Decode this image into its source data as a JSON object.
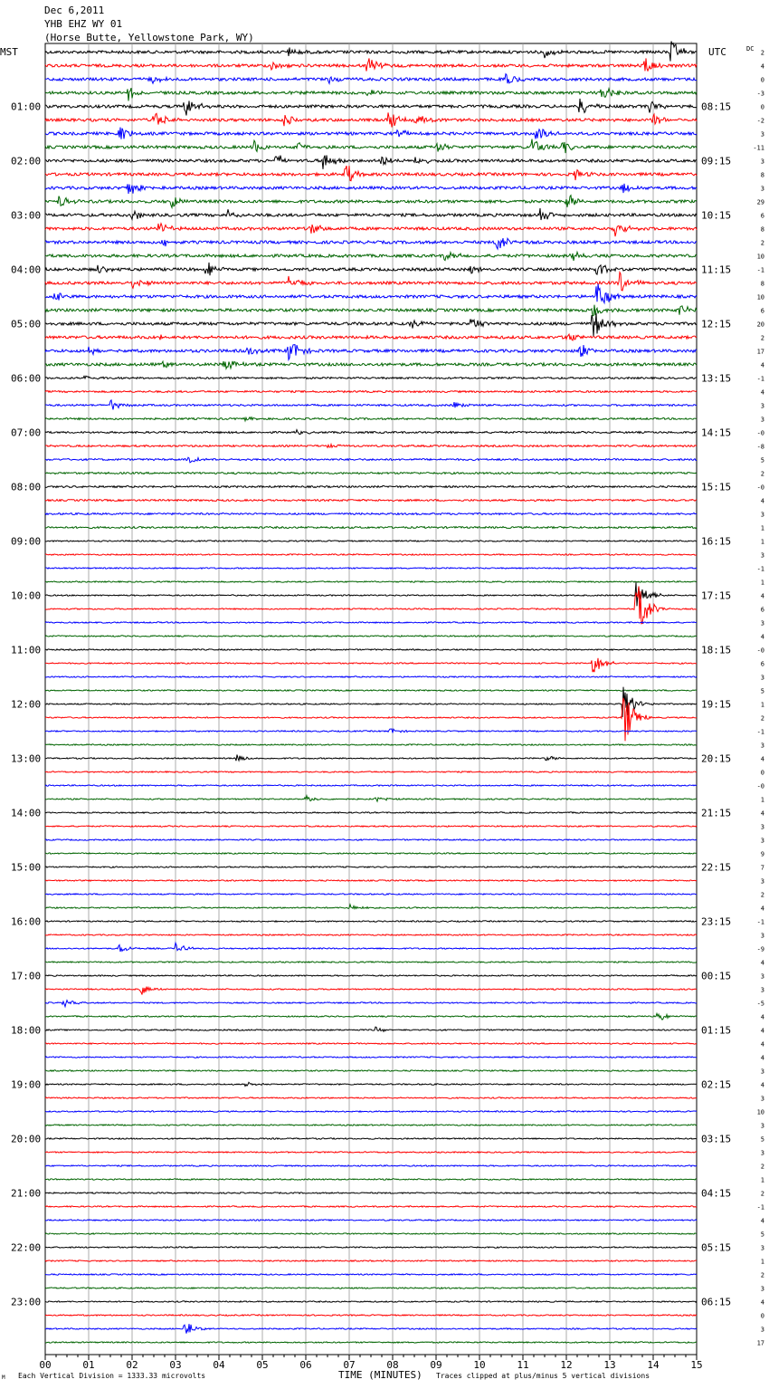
{
  "header": {
    "date": "Dec 6,2011",
    "station": "YHB EHZ WY 01",
    "location": "(Horse Butte, Yellowstone Park, WY)"
  },
  "labels": {
    "left_tz": "MST",
    "right_tz": "UTC",
    "dc": "DC",
    "footer_left": "Each Vertical Division = 1333.33 microvolts",
    "footer_center": "TIME (MINUTES)",
    "footer_right": "Traces clipped at plus/minus 5 vertical divisions",
    "footer_mark": "M"
  },
  "colors": [
    "#000000",
    "#ff0000",
    "#0000ff",
    "#006400"
  ],
  "chart_data": {
    "type": "line",
    "xlabel": "TIME (MINUTES)",
    "xlim": [
      0,
      15
    ],
    "x_ticks": [
      "00",
      "01",
      "02",
      "03",
      "04",
      "05",
      "06",
      "07",
      "08",
      "09",
      "10",
      "11",
      "12",
      "13",
      "14",
      "15"
    ],
    "mst_hours": [
      "01:00",
      "02:00",
      "03:00",
      "04:00",
      "05:00",
      "06:00",
      "07:00",
      "08:00",
      "09:00",
      "10:00",
      "11:00",
      "12:00",
      "13:00",
      "14:00",
      "15:00",
      "16:00",
      "17:00",
      "18:00",
      "19:00",
      "20:00",
      "21:00",
      "22:00",
      "23:00"
    ],
    "utc_hours": [
      "08:15",
      "09:15",
      "10:15",
      "11:15",
      "12:15",
      "13:15",
      "14:15",
      "15:15",
      "16:15",
      "17:15",
      "18:15",
      "19:15",
      "20:15",
      "21:15",
      "22:15",
      "23:15",
      "00:15",
      "01:15",
      "02:15",
      "03:15",
      "04:15",
      "05:15",
      "06:15"
    ],
    "dc_offsets": [
      "2",
      "4",
      "0",
      "-3",
      "0",
      "-2",
      "3",
      "-11",
      "3",
      "8",
      "3",
      "29",
      "6",
      "8",
      "2",
      "10",
      "-1",
      "8",
      "10",
      "6",
      "20",
      "2",
      "17",
      "4",
      "-1",
      "4",
      "3",
      "3",
      "-0",
      "-8",
      "5",
      "2",
      "-0",
      "4",
      "3",
      "1",
      "1",
      "3",
      "-1",
      "1",
      "4",
      "6",
      "3",
      "4",
      "-0",
      "6",
      "3",
      "5",
      "1",
      "2",
      "-1",
      "3",
      "4",
      "0",
      "-0",
      "1",
      "4",
      "3",
      "3",
      "9",
      "7",
      "3",
      "2",
      "4",
      "-1",
      "3",
      "-9",
      "4",
      "3",
      "3",
      "-5",
      "4",
      "4",
      "4",
      "4",
      "3",
      "4",
      "3",
      "10",
      "3",
      "5",
      "3",
      "2",
      "1",
      "2",
      "-1",
      "4",
      "5",
      "3",
      "1",
      "2",
      "3",
      "4",
      "0",
      "3",
      "17"
    ],
    "events": [
      {
        "line": 0,
        "minute": 5.6,
        "amp": 5
      },
      {
        "line": 0,
        "minute": 11.5,
        "amp": 6
      },
      {
        "line": 0,
        "minute": 14.4,
        "amp": 14
      },
      {
        "line": 1,
        "minute": 5.2,
        "amp": 6
      },
      {
        "line": 1,
        "minute": 7.4,
        "amp": 10
      },
      {
        "line": 1,
        "minute": 13.8,
        "amp": 12
      },
      {
        "line": 2,
        "minute": 2.4,
        "amp": 6
      },
      {
        "line": 2,
        "minute": 6.5,
        "amp": 6
      },
      {
        "line": 2,
        "minute": 10.6,
        "amp": 9
      },
      {
        "line": 3,
        "minute": 1.9,
        "amp": 9
      },
      {
        "line": 3,
        "minute": 7.4,
        "amp": 6
      },
      {
        "line": 3,
        "minute": 12.8,
        "amp": 10
      },
      {
        "line": 4,
        "minute": 3.2,
        "amp": 14
      },
      {
        "line": 4,
        "minute": 12.3,
        "amp": 12
      },
      {
        "line": 4,
        "minute": 13.9,
        "amp": 8
      },
      {
        "line": 5,
        "minute": 2.5,
        "amp": 12
      },
      {
        "line": 5,
        "minute": 5.5,
        "amp": 7
      },
      {
        "line": 5,
        "minute": 7.9,
        "amp": 12
      },
      {
        "line": 5,
        "minute": 8.5,
        "amp": 8
      },
      {
        "line": 5,
        "minute": 14.0,
        "amp": 6
      },
      {
        "line": 6,
        "minute": 1.7,
        "amp": 10
      },
      {
        "line": 6,
        "minute": 8.1,
        "amp": 6
      },
      {
        "line": 6,
        "minute": 11.3,
        "amp": 10
      },
      {
        "line": 7,
        "minute": 4.8,
        "amp": 8
      },
      {
        "line": 7,
        "minute": 5.8,
        "amp": 6
      },
      {
        "line": 7,
        "minute": 9.0,
        "amp": 7
      },
      {
        "line": 7,
        "minute": 11.2,
        "amp": 12
      },
      {
        "line": 7,
        "minute": 11.9,
        "amp": 8
      },
      {
        "line": 8,
        "minute": 5.3,
        "amp": 8
      },
      {
        "line": 8,
        "minute": 6.4,
        "amp": 12
      },
      {
        "line": 8,
        "minute": 7.7,
        "amp": 7
      },
      {
        "line": 8,
        "minute": 8.5,
        "amp": 6
      },
      {
        "line": 9,
        "minute": 6.9,
        "amp": 14
      },
      {
        "line": 9,
        "minute": 12.2,
        "amp": 6
      },
      {
        "line": 10,
        "minute": 1.9,
        "amp": 10
      },
      {
        "line": 10,
        "minute": 13.3,
        "amp": 8
      },
      {
        "line": 11,
        "minute": 0.3,
        "amp": 9
      },
      {
        "line": 11,
        "minute": 2.9,
        "amp": 8
      },
      {
        "line": 11,
        "minute": 12.0,
        "amp": 10
      },
      {
        "line": 12,
        "minute": 2.0,
        "amp": 6
      },
      {
        "line": 12,
        "minute": 4.2,
        "amp": 6
      },
      {
        "line": 12,
        "minute": 11.4,
        "amp": 8
      },
      {
        "line": 13,
        "minute": 2.6,
        "amp": 8
      },
      {
        "line": 13,
        "minute": 6.1,
        "amp": 8
      },
      {
        "line": 13,
        "minute": 13.1,
        "amp": 10
      },
      {
        "line": 14,
        "minute": 2.7,
        "amp": 7
      },
      {
        "line": 14,
        "minute": 10.4,
        "amp": 12
      },
      {
        "line": 15,
        "minute": 9.2,
        "amp": 6
      },
      {
        "line": 15,
        "minute": 12.1,
        "amp": 6
      },
      {
        "line": 16,
        "minute": 1.2,
        "amp": 8
      },
      {
        "line": 16,
        "minute": 3.7,
        "amp": 12
      },
      {
        "line": 16,
        "minute": 9.8,
        "amp": 6
      },
      {
        "line": 16,
        "minute": 12.7,
        "amp": 10
      },
      {
        "line": 17,
        "minute": 2.0,
        "amp": 8
      },
      {
        "line": 17,
        "minute": 5.6,
        "amp": 10
      },
      {
        "line": 17,
        "minute": 13.2,
        "amp": 14
      },
      {
        "line": 18,
        "minute": 0.2,
        "amp": 6
      },
      {
        "line": 18,
        "minute": 12.7,
        "amp": 20
      },
      {
        "line": 19,
        "minute": 12.6,
        "amp": 8
      },
      {
        "line": 19,
        "minute": 14.6,
        "amp": 6
      },
      {
        "line": 20,
        "minute": 8.4,
        "amp": 6
      },
      {
        "line": 20,
        "minute": 9.8,
        "amp": 8
      },
      {
        "line": 20,
        "minute": 12.6,
        "amp": 20
      },
      {
        "line": 21,
        "minute": 2.6,
        "amp": 5
      },
      {
        "line": 21,
        "minute": 12.0,
        "amp": 5
      },
      {
        "line": 22,
        "minute": 1.0,
        "amp": 5
      },
      {
        "line": 22,
        "minute": 4.6,
        "amp": 6
      },
      {
        "line": 22,
        "minute": 5.6,
        "amp": 16
      },
      {
        "line": 22,
        "minute": 12.3,
        "amp": 9
      },
      {
        "line": 23,
        "minute": 2.7,
        "amp": 5
      },
      {
        "line": 23,
        "minute": 4.1,
        "amp": 8
      },
      {
        "line": 24,
        "minute": 0.9,
        "amp": 4
      },
      {
        "line": 26,
        "minute": 1.5,
        "amp": 6
      },
      {
        "line": 26,
        "minute": 9.4,
        "amp": 5
      },
      {
        "line": 27,
        "minute": 4.5,
        "amp": 3
      },
      {
        "line": 28,
        "minute": 5.8,
        "amp": 3
      },
      {
        "line": 29,
        "minute": 6.5,
        "amp": 3
      },
      {
        "line": 30,
        "minute": 3.3,
        "amp": 4
      },
      {
        "line": 40,
        "minute": 13.6,
        "amp": 22
      },
      {
        "line": 41,
        "minute": 13.6,
        "amp": 40
      },
      {
        "line": 45,
        "minute": 12.6,
        "amp": 14
      },
      {
        "line": 48,
        "minute": 13.3,
        "amp": 22
      },
      {
        "line": 49,
        "minute": 13.3,
        "amp": 36
      },
      {
        "line": 50,
        "minute": 7.9,
        "amp": 4
      },
      {
        "line": 52,
        "minute": 4.4,
        "amp": 4
      },
      {
        "line": 52,
        "minute": 11.5,
        "amp": 4
      },
      {
        "line": 55,
        "minute": 6.0,
        "amp": 4
      },
      {
        "line": 55,
        "minute": 7.6,
        "amp": 3
      },
      {
        "line": 63,
        "minute": 7.0,
        "amp": 4
      },
      {
        "line": 66,
        "minute": 1.7,
        "amp": 6
      },
      {
        "line": 66,
        "minute": 3.0,
        "amp": 6
      },
      {
        "line": 69,
        "minute": 2.2,
        "amp": 7
      },
      {
        "line": 70,
        "minute": 0.4,
        "amp": 5
      },
      {
        "line": 71,
        "minute": 14.1,
        "amp": 7
      },
      {
        "line": 72,
        "minute": 7.6,
        "amp": 4
      },
      {
        "line": 76,
        "minute": 4.6,
        "amp": 3
      },
      {
        "line": 94,
        "minute": 3.2,
        "amp": 12
      }
    ]
  }
}
